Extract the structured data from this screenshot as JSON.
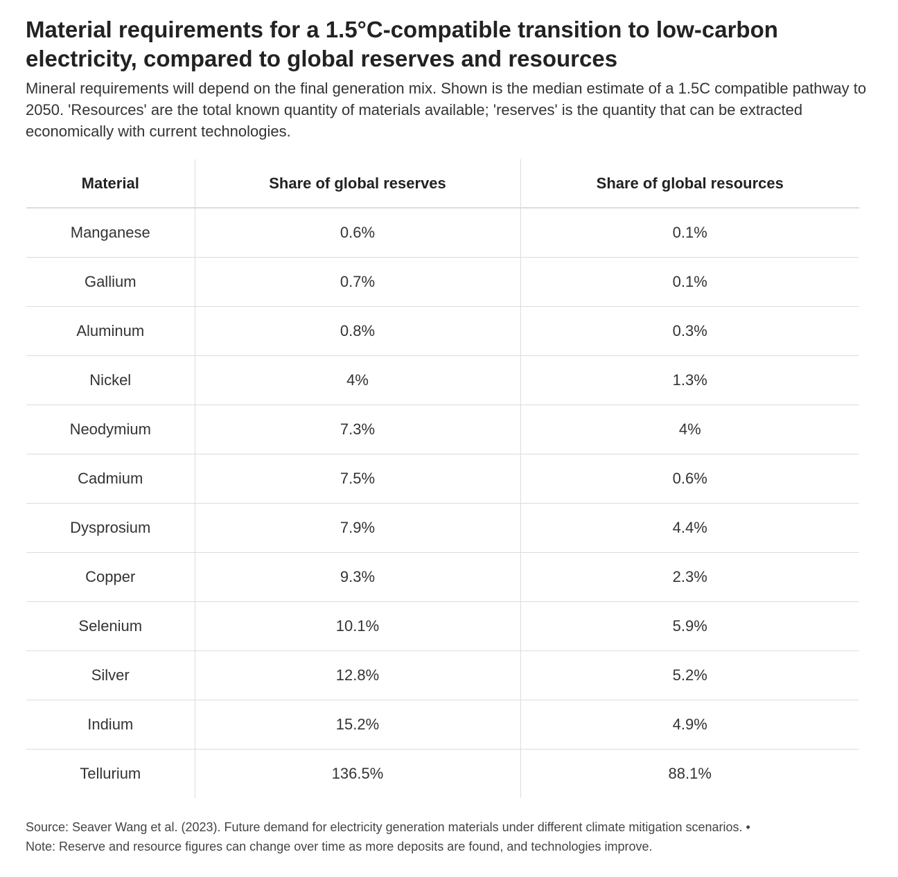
{
  "title": "Material requirements for a 1.5°C-compatible transition to low-carbon electricity, compared to global reserves and resources",
  "subtitle": "Mineral requirements will depend on the final generation mix. Shown is the median estimate of a 1.5C compatible pathway to 2050. 'Resources' are the total known quantity of materials available; 'reserves' is the quantity that can be extracted economically with current technologies.",
  "footer": {
    "source": "Source: Seaver Wang et al. (2023). Future demand for electricity generation materials under different climate mitigation scenarios. •",
    "note": "Note: Reserve and resource figures can change over time as more deposits are found, and technologies improve."
  },
  "chart_data": {
    "type": "table",
    "columns": [
      "Material",
      "Share of global reserves",
      "Share of global resources"
    ],
    "rows": [
      [
        "Manganese",
        "0.6%",
        "0.1%"
      ],
      [
        "Gallium",
        "0.7%",
        "0.1%"
      ],
      [
        "Aluminum",
        "0.8%",
        "0.3%"
      ],
      [
        "Nickel",
        "4%",
        "1.3%"
      ],
      [
        "Neodymium",
        "7.3%",
        "4%"
      ],
      [
        "Cadmium",
        "7.5%",
        "0.6%"
      ],
      [
        "Dysprosium",
        "7.9%",
        "4.4%"
      ],
      [
        "Copper",
        "9.3%",
        "2.3%"
      ],
      [
        "Selenium",
        "10.1%",
        "5.9%"
      ],
      [
        "Silver",
        "12.8%",
        "5.2%"
      ],
      [
        "Indium",
        "15.2%",
        "4.9%"
      ],
      [
        "Tellurium",
        "136.5%",
        "88.1%"
      ]
    ]
  }
}
